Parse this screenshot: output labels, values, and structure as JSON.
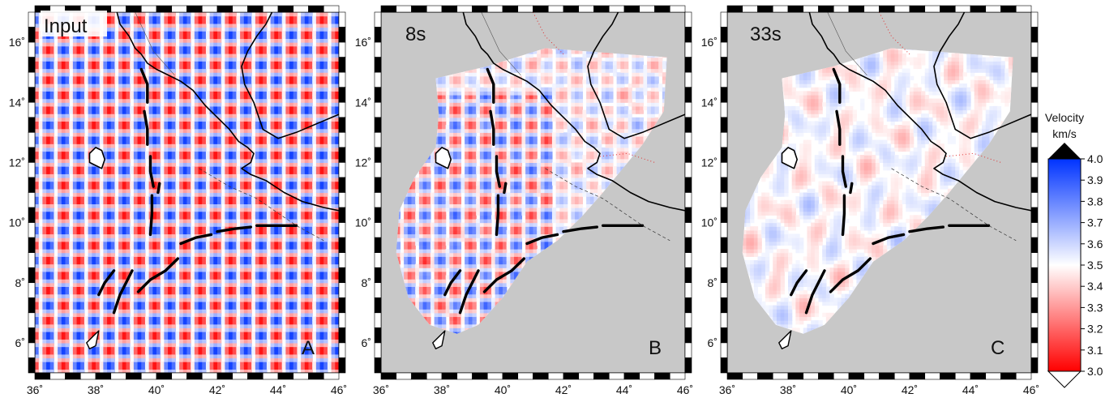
{
  "panels": [
    {
      "id": "A",
      "title": "Input",
      "letter": "A",
      "style": "checker",
      "amp": 1.0,
      "mask": false
    },
    {
      "id": "B",
      "title": "8s",
      "letter": "B",
      "style": "checker-smooth",
      "amp": 0.75,
      "mask": true
    },
    {
      "id": "C",
      "title": "33s",
      "letter": "C",
      "style": "noise",
      "amp": 0.35,
      "mask": true
    }
  ],
  "axes": {
    "lon_min": 36,
    "lon_max": 46,
    "lat_min": 5,
    "lat_max": 17,
    "lon_labels": [
      "36˚",
      "38˚",
      "40˚",
      "42˚",
      "44˚",
      "46˚"
    ],
    "lat_labels": [
      "6˚",
      "8˚",
      "10˚",
      "12˚",
      "14˚",
      "16˚"
    ]
  },
  "colorbar": {
    "title_line1": "Velocity",
    "title_line2": "km/s",
    "ticks": [
      "4.0",
      "3.9",
      "3.8",
      "3.7",
      "3.6",
      "3.5",
      "3.4",
      "3.3",
      "3.2",
      "3.1",
      "3.0"
    ],
    "min": 3.0,
    "max": 4.0,
    "color_low": "#ff0000",
    "color_mid": "#ffffff",
    "color_high": "#0033ff"
  },
  "colors": {
    "land": "#c8c8c8",
    "coast": "#000000",
    "fault": "#000000",
    "frame": "#000000"
  }
}
